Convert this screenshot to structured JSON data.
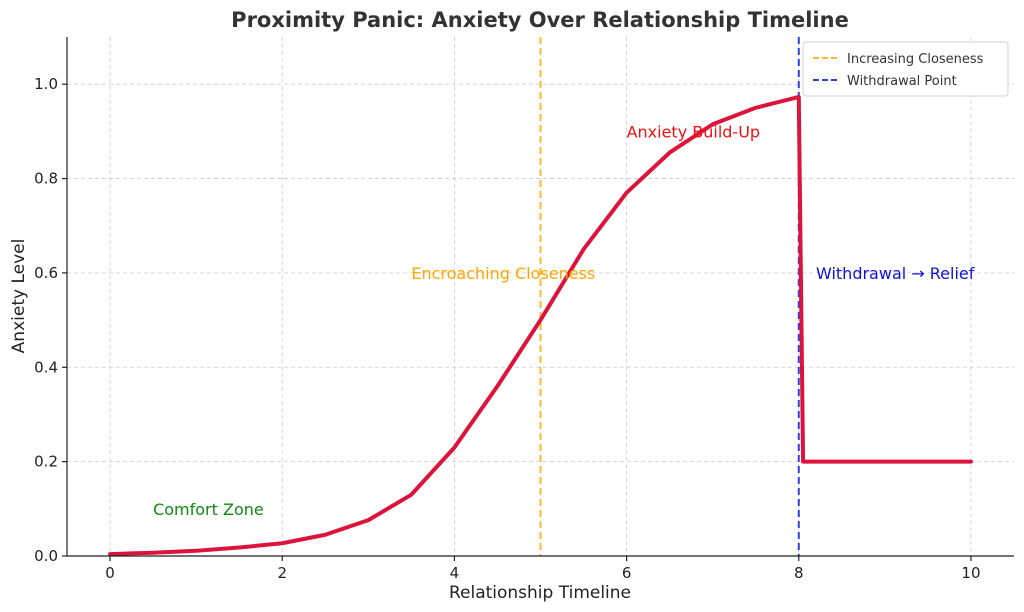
{
  "chart_data": {
    "type": "line",
    "title": "Proximity Panic: Anxiety Over Relationship Timeline",
    "xlabel": "Relationship Timeline",
    "ylabel": "Anxiety Level",
    "xlim": [
      -0.5,
      10.5
    ],
    "ylim": [
      0,
      1.1
    ],
    "xticks": [
      0,
      2,
      4,
      6,
      8,
      10
    ],
    "yticks": [
      0.0,
      0.2,
      0.4,
      0.6,
      0.8,
      1.0
    ],
    "xtick_labels": [
      "0",
      "2",
      "4",
      "6",
      "8",
      "10"
    ],
    "ytick_labels": [
      "0.0",
      "0.2",
      "0.4",
      "0.6",
      "0.8",
      "1.0"
    ],
    "grid": true,
    "series": [
      {
        "color": "#dc143c",
        "x": [
          0,
          0.5,
          1,
          1.5,
          2,
          2.5,
          3,
          3.5,
          4,
          4.5,
          5,
          5.5,
          6,
          6.5,
          7,
          7.5,
          8,
          8.05,
          8.5,
          9,
          9.5,
          10
        ],
        "y": [
          0.004,
          0.007,
          0.011,
          0.018,
          0.027,
          0.045,
          0.076,
          0.13,
          0.23,
          0.36,
          0.5,
          0.65,
          0.77,
          0.855,
          0.915,
          0.95,
          0.973,
          0.2,
          0.2,
          0.2,
          0.2,
          0.2
        ]
      }
    ],
    "vlines": [
      {
        "x": 5,
        "color": "#ffb733",
        "style": "dashed",
        "label": "Increasing Closeness"
      },
      {
        "x": 8,
        "color": "#3040e0",
        "style": "dashed",
        "label": "Withdrawal Point"
      }
    ],
    "legend": {
      "placement": "top-right",
      "entries": [
        "Increasing Closeness",
        "Withdrawal Point"
      ]
    },
    "annotations": [
      {
        "text": "Comfort Zone",
        "x": 0.5,
        "y": 0.1,
        "color": "#118811"
      },
      {
        "text": "Encroaching Closeness",
        "x": 3.5,
        "y": 0.6,
        "color": "#ffa500"
      },
      {
        "text": "Anxiety Build-Up",
        "x": 6.0,
        "y": 0.9,
        "color": "#ee1111"
      },
      {
        "text": "Withdrawal → Relief",
        "x": 8.2,
        "y": 0.6,
        "color": "#1111dd"
      }
    ]
  }
}
